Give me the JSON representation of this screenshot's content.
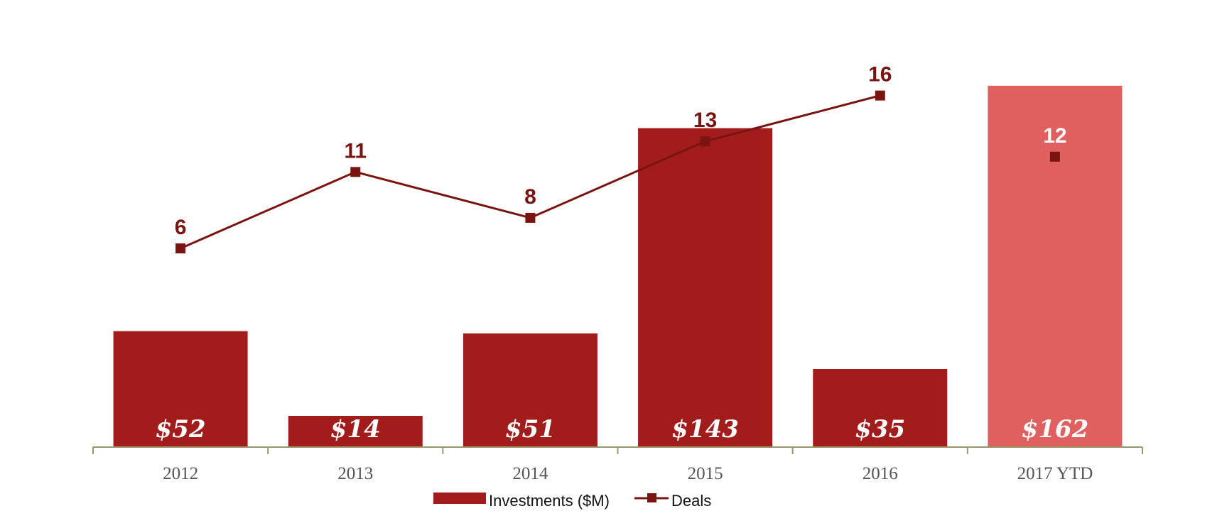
{
  "chart_data": {
    "type": "bar",
    "categories": [
      "2012",
      "2013",
      "2014",
      "2015",
      "2016",
      "2017 YTD"
    ],
    "series": [
      {
        "name": "Investments ($M)",
        "type": "bar",
        "values": [
          52,
          14,
          51,
          143,
          35,
          162
        ],
        "labels": [
          "$52",
          "$14",
          "$51",
          "$143",
          "$35",
          "$162"
        ]
      },
      {
        "name": "Deals",
        "type": "line",
        "values": [
          6,
          11,
          8,
          13,
          16,
          12
        ],
        "labels": [
          "6",
          "11",
          "8",
          "13",
          "16",
          "12"
        ],
        "connected_through_index": 4
      }
    ],
    "bar_ylim": [
      0,
      175
    ],
    "line_ylim": [
      -7,
      19
    ],
    "grid": false,
    "legend_position": "bottom-center",
    "colors": {
      "bar": "#A11C1A",
      "bar_highlight": "#E06060",
      "line": "#7A1410",
      "marker": "#7A1410",
      "axis": "#9C9670",
      "deal_label_on_highlight": "#ffffff"
    },
    "highlight_index": 5
  }
}
